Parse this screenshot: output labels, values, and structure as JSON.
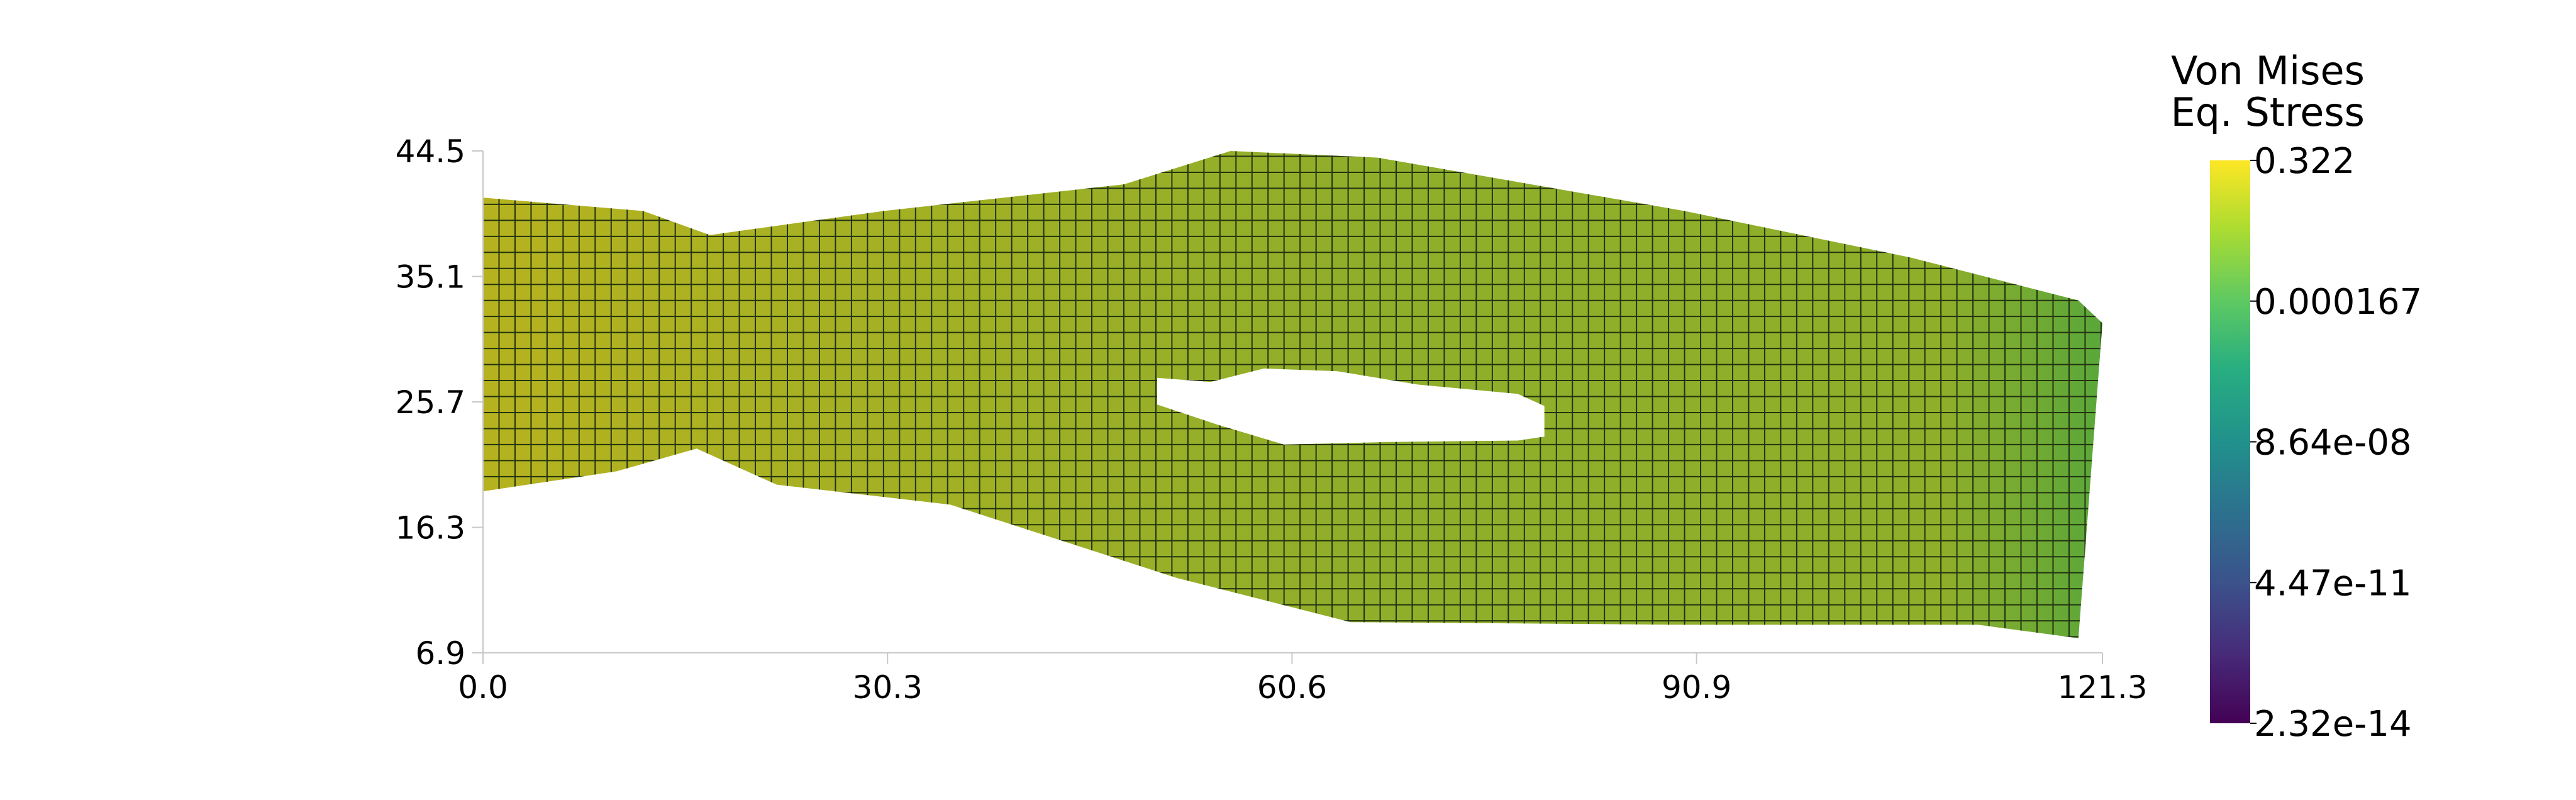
{
  "chart_data": {
    "type": "heatmap",
    "x_ticks": [
      "0.0",
      "30.3",
      "60.6",
      "90.9",
      "121.3"
    ],
    "y_ticks": [
      "44.5",
      "35.1",
      "25.7",
      "16.3",
      "6.9"
    ],
    "xlim": [
      0.0,
      121.3
    ],
    "ylim": [
      6.9,
      44.5
    ],
    "colorbar": {
      "title_line1": "Von Mises",
      "title_line2": "Eq. Stress",
      "scale": "log",
      "ticks": [
        "0.322",
        "0.000167",
        "8.64e-08",
        "4.47e-11",
        "2.32e-14"
      ],
      "range": [
        2.32e-14,
        0.322
      ],
      "colormap": "viridis"
    },
    "mesh": {
      "outer_boundary_data_units": [
        [
          0.0,
          41.0
        ],
        [
          12.0,
          40.0
        ],
        [
          17.0,
          38.2
        ],
        [
          30.0,
          40.0
        ],
        [
          48.0,
          42.0
        ],
        [
          56.0,
          44.5
        ],
        [
          67.0,
          44.0
        ],
        [
          90.0,
          40.0
        ],
        [
          107.0,
          36.5
        ],
        [
          119.5,
          33.3
        ],
        [
          121.3,
          31.6
        ],
        [
          119.5,
          8.0
        ],
        [
          112.0,
          9.0
        ],
        [
          90.0,
          9.0
        ],
        [
          65.0,
          9.2
        ],
        [
          52.0,
          12.5
        ],
        [
          35.0,
          18.0
        ],
        [
          22.0,
          19.5
        ],
        [
          16.0,
          22.2
        ],
        [
          10.0,
          20.5
        ],
        [
          0.0,
          19.0
        ]
      ],
      "hole_boundary_data_units": [
        [
          50.5,
          27.5
        ],
        [
          54.5,
          27.2
        ],
        [
          58.5,
          28.2
        ],
        [
          64.0,
          28.0
        ],
        [
          70.0,
          27.0
        ],
        [
          77.5,
          26.3
        ],
        [
          79.5,
          25.4
        ],
        [
          79.5,
          23.1
        ],
        [
          77.5,
          22.8
        ],
        [
          68.0,
          22.7
        ],
        [
          60.0,
          22.5
        ],
        [
          55.0,
          24.0
        ],
        [
          50.5,
          25.5
        ]
      ],
      "cell_size": 1.2,
      "field_colors": {
        "left": "#b6b21f",
        "middle": "#8fae2a",
        "right": "#5aa73a",
        "edge": "#223311"
      }
    }
  }
}
